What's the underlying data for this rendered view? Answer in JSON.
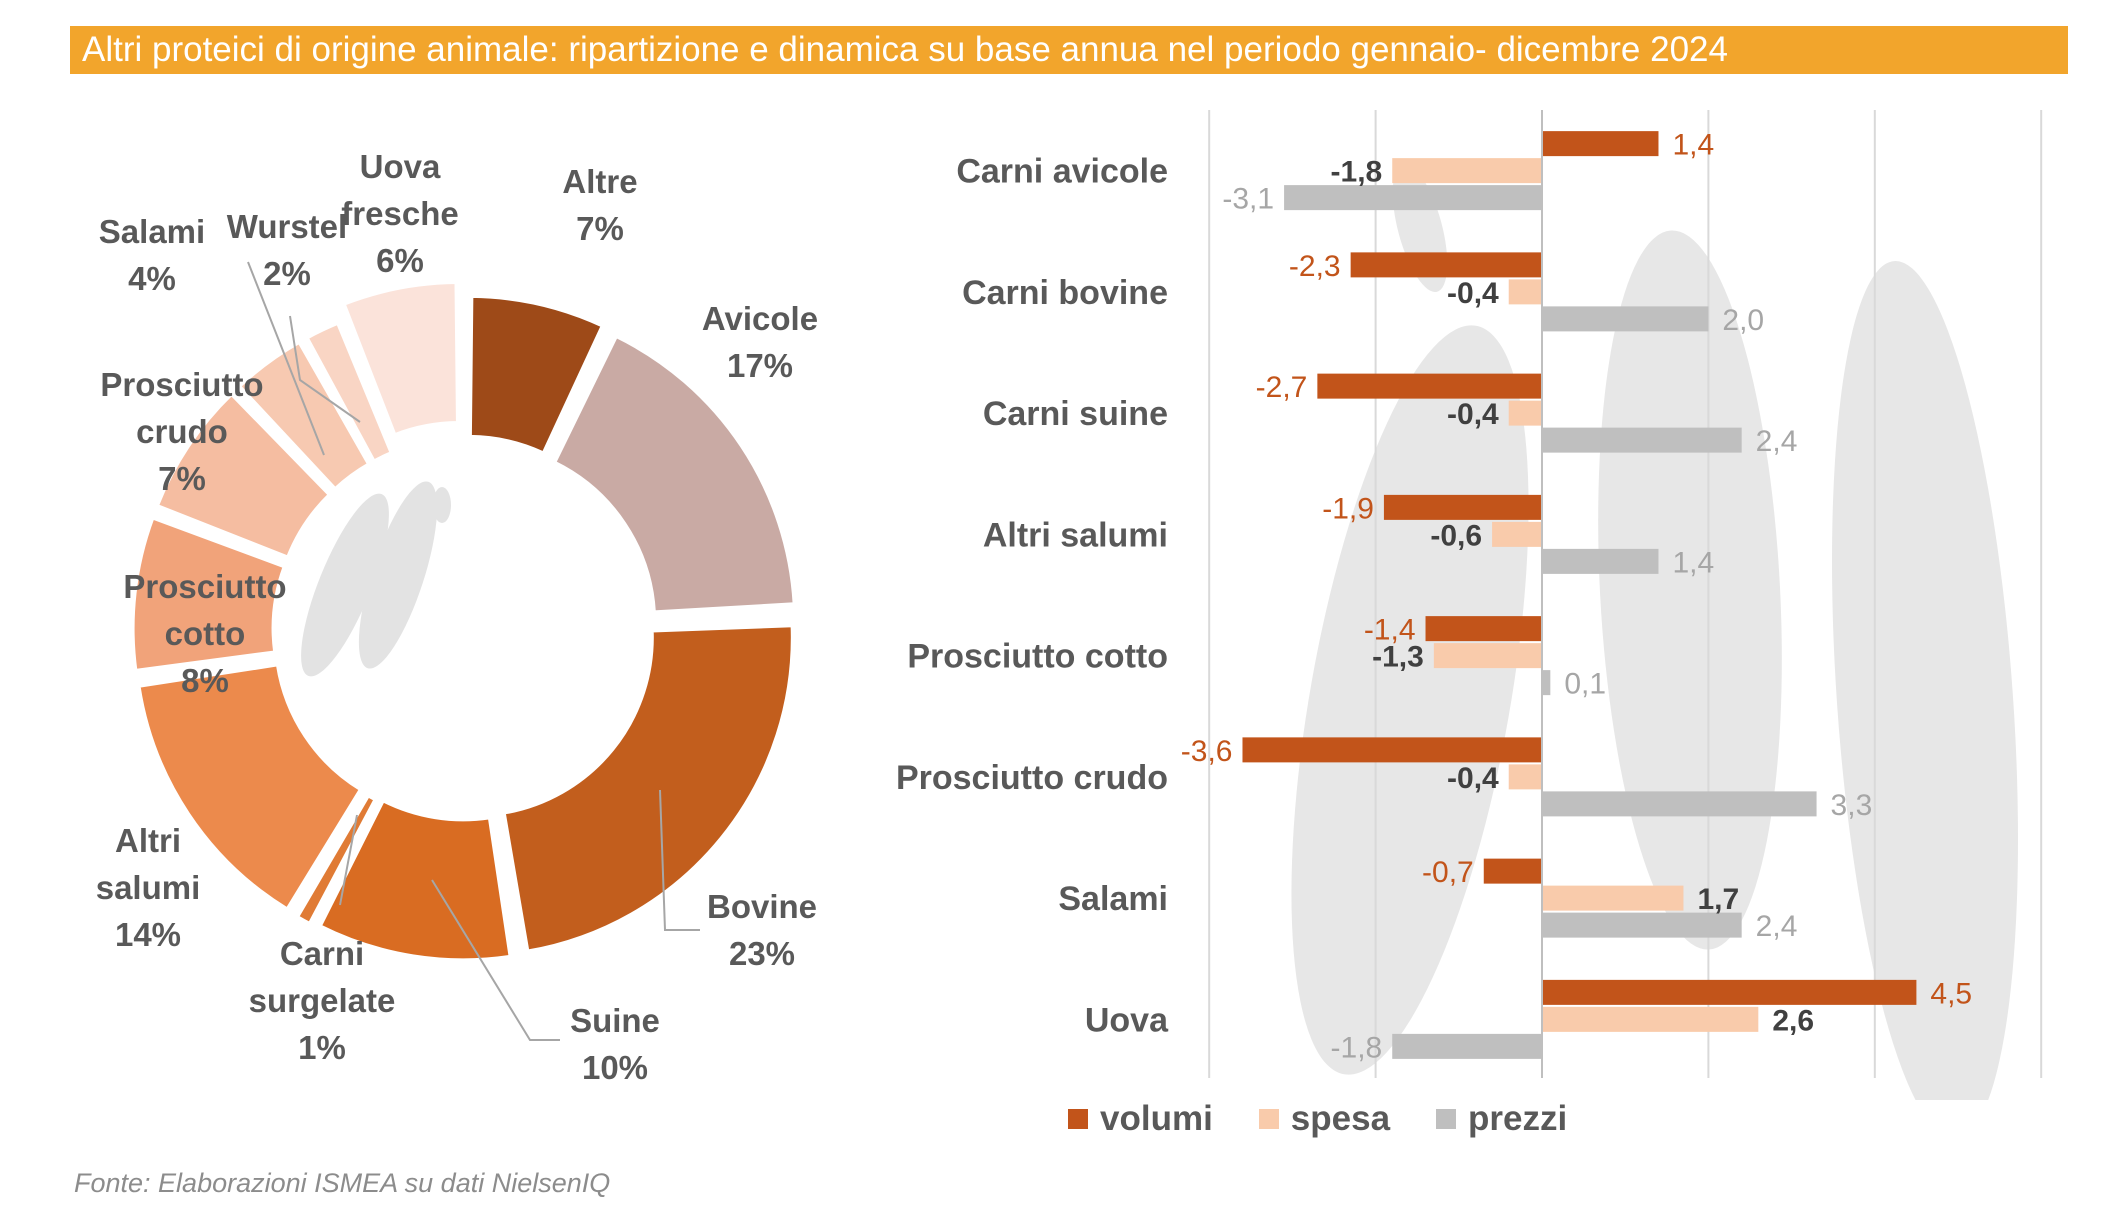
{
  "title": "Altri proteici di origine animale: ripartizione e dinamica su base annua nel periodo gennaio- dicembre 2024",
  "source": "Fonte: Elaborazioni ISMEA su dati NielsenIQ",
  "colors": {
    "title_bg": "#F2A52C",
    "volumi": "#C2541A",
    "spesa": "#F9CBAB",
    "prezzi": "#BFBFBF",
    "label_text": "#595959",
    "bold_value": "#404040",
    "prezzi_value": "#A6A6A6"
  },
  "chart_data": [
    {
      "type": "pie",
      "variant": "donut",
      "title": "",
      "slices": [
        {
          "name": "Altre",
          "value": 7,
          "label": "7%",
          "color": "#9E4A18"
        },
        {
          "name": "Avicole",
          "value": 17,
          "label": "17%",
          "color": "#C9AAA4"
        },
        {
          "name": "Bovine",
          "value": 23,
          "label": "23%",
          "color": "#C25E1D"
        },
        {
          "name": "Suine",
          "value": 10,
          "label": "10%",
          "color": "#D96C22"
        },
        {
          "name": "Carni surgelate",
          "value": 1,
          "label": "1%",
          "color": "#E07B35"
        },
        {
          "name": "Altri salumi",
          "value": 14,
          "label": "14%",
          "color": "#EC8A4C"
        },
        {
          "name": "Prosciutto cotto",
          "value": 8,
          "label": "8%",
          "color": "#F1A37A"
        },
        {
          "name": "Prosciutto crudo",
          "value": 7,
          "label": "7%",
          "color": "#F5BDA1"
        },
        {
          "name": "Salami",
          "value": 4,
          "label": "4%",
          "color": "#F7C9B1"
        },
        {
          "name": "Wurstel",
          "value": 2,
          "label": "2%",
          "color": "#F9D5C4"
        },
        {
          "name": "Uova fresche",
          "value": 6,
          "label": "6%",
          "color": "#FBE3DA"
        }
      ],
      "label_lines": {
        "Altre": [
          "Altre",
          "7%"
        ],
        "Avicole": [
          "Avicole",
          "17%"
        ],
        "Bovine": [
          "Bovine",
          "23%"
        ],
        "Suine": [
          "Suine",
          "10%"
        ],
        "Carni surgelate": [
          "Carni",
          "surgelate",
          "1%"
        ],
        "Altri salumi": [
          "Altri",
          "salumi",
          "14%"
        ],
        "Prosciutto cotto": [
          "Prosciutto",
          "cotto",
          "8%"
        ],
        "Prosciutto crudo": [
          "Prosciutto",
          "crudo",
          "7%"
        ],
        "Salami": [
          "Salami",
          "4%"
        ],
        "Wurstel": [
          "Wurstel",
          "2%"
        ],
        "Uova fresche": [
          "Uova",
          "fresche",
          "6%"
        ]
      }
    },
    {
      "type": "bar",
      "orientation": "horizontal",
      "title": "",
      "categories": [
        "Carni avicole",
        "Carni bovine",
        "Carni suine",
        "Altri salumi",
        "Prosciutto cotto",
        "Prosciutto crudo",
        "Salami",
        "Uova"
      ],
      "series": [
        {
          "name": "volumi",
          "values": [
            1.4,
            -2.3,
            -2.7,
            -1.9,
            -1.4,
            -3.6,
            -0.7,
            4.5
          ],
          "labels": [
            "1,4",
            "-2,3",
            "-2,7",
            "-1,9",
            "-1,4",
            "-3,6",
            "-0,7",
            "4,5"
          ]
        },
        {
          "name": "spesa",
          "values": [
            -1.8,
            -0.4,
            -0.4,
            -0.6,
            -1.3,
            -0.4,
            1.7,
            2.6
          ],
          "labels": [
            "-1,8",
            "-0,4",
            "-0,4",
            "-0,6",
            "-1,3",
            "-0,4",
            "1,7",
            "2,6"
          ]
        },
        {
          "name": "prezzi",
          "values": [
            -3.1,
            2.0,
            2.4,
            1.4,
            0.1,
            3.3,
            2.4,
            -1.8
          ],
          "labels": [
            "-3,1",
            "2,0",
            "2,4",
            "1,4",
            "0,1",
            "3,3",
            "2,4",
            "-1,8"
          ]
        }
      ],
      "xlim": [
        -4,
        6
      ],
      "grid": true,
      "legend": "bottom"
    }
  ]
}
